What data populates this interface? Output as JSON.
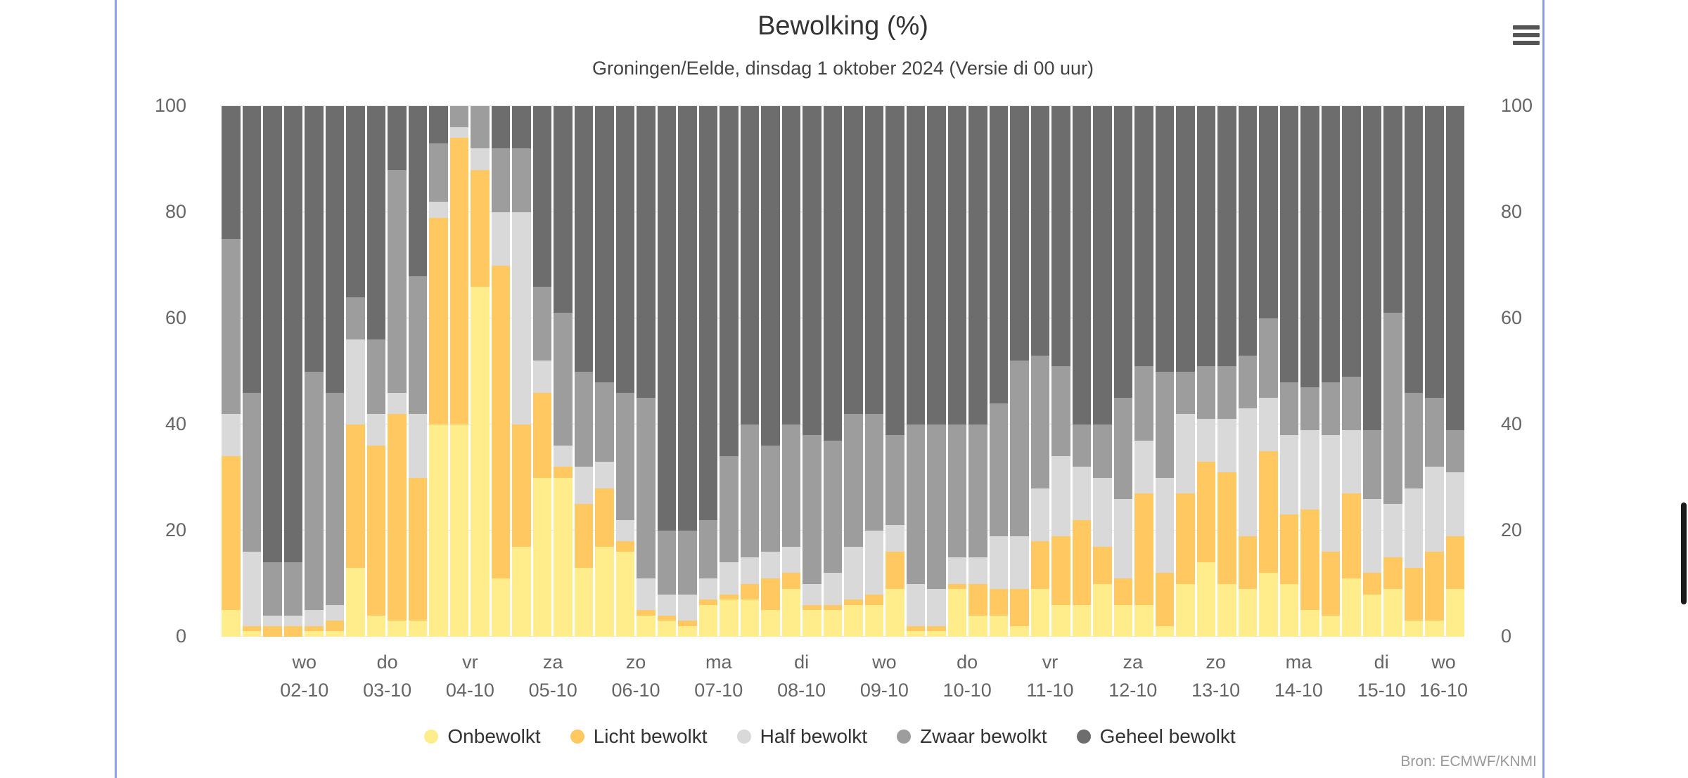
{
  "page": {
    "credits": "Bron: ECMWF/KNMI",
    "accent_border_color": "#8d9df1",
    "scrollbar_color": "#1a1a1a"
  },
  "menu": {
    "icon": "hamburger-menu-icon"
  },
  "chart_data": {
    "type": "bar",
    "stacking": "percent",
    "title": "Bewolking (%)",
    "subtitle": "Groningen/Eelde, dinsdag 1 oktober 2024 (Versie di 00 uur)",
    "xlabel": "",
    "ylabel": "",
    "ylim": [
      0,
      100
    ],
    "yticks": [
      0,
      20,
      40,
      60,
      80,
      100
    ],
    "grid": true,
    "legend_position": "bottom",
    "bar_count": 60,
    "bars_per_day": 4,
    "x_tick_groups": [
      {
        "day": "wo",
        "date": "02-10",
        "start": 2,
        "count": 4
      },
      {
        "day": "do",
        "date": "03-10",
        "start": 6,
        "count": 4
      },
      {
        "day": "vr",
        "date": "04-10",
        "start": 10,
        "count": 4
      },
      {
        "day": "za",
        "date": "05-10",
        "start": 14,
        "count": 4
      },
      {
        "day": "zo",
        "date": "06-10",
        "start": 18,
        "count": 4
      },
      {
        "day": "ma",
        "date": "07-10",
        "start": 22,
        "count": 4
      },
      {
        "day": "di",
        "date": "08-10",
        "start": 26,
        "count": 4
      },
      {
        "day": "wo",
        "date": "09-10",
        "start": 30,
        "count": 4
      },
      {
        "day": "do",
        "date": "10-10",
        "start": 34,
        "count": 4
      },
      {
        "day": "vr",
        "date": "11-10",
        "start": 38,
        "count": 4
      },
      {
        "day": "za",
        "date": "12-10",
        "start": 42,
        "count": 4
      },
      {
        "day": "zo",
        "date": "13-10",
        "start": 46,
        "count": 4
      },
      {
        "day": "ma",
        "date": "14-10",
        "start": 50,
        "count": 4
      },
      {
        "day": "di",
        "date": "15-10",
        "start": 54,
        "count": 4
      },
      {
        "day": "wo",
        "date": "16-10",
        "start": 58,
        "count": 2
      }
    ],
    "series": [
      {
        "name": "Onbewolkt",
        "color": "#ffec8b",
        "values": [
          5,
          1,
          0,
          0,
          1,
          1,
          13,
          4,
          3,
          3,
          40,
          40,
          66,
          11,
          17,
          30,
          30,
          13,
          17,
          16,
          4,
          3,
          2,
          6,
          7,
          7,
          5,
          9,
          5,
          5,
          6,
          6,
          9,
          1,
          1,
          9,
          4,
          4,
          2,
          9,
          6,
          6,
          10,
          6,
          6,
          2,
          10,
          14,
          10,
          9,
          12,
          10,
          5,
          4,
          11,
          8,
          9,
          3,
          3,
          9
        ]
      },
      {
        "name": "Licht bewolkt",
        "color": "#ffc860",
        "values": [
          29,
          1,
          2,
          2,
          1,
          2,
          27,
          32,
          39,
          27,
          39,
          54,
          22,
          59,
          23,
          16,
          2,
          12,
          11,
          2,
          1,
          1,
          1,
          1,
          1,
          3,
          6,
          3,
          1,
          1,
          1,
          2,
          7,
          1,
          1,
          1,
          6,
          5,
          7,
          9,
          13,
          16,
          7,
          5,
          21,
          10,
          17,
          19,
          21,
          10,
          23,
          13,
          19,
          12,
          16,
          4,
          6,
          10,
          13,
          10
        ]
      },
      {
        "name": "Half bewolkt",
        "color": "#d9d9d9",
        "values": [
          8,
          14,
          2,
          2,
          3,
          3,
          16,
          6,
          4,
          12,
          3,
          2,
          4,
          10,
          40,
          6,
          4,
          7,
          5,
          4,
          6,
          4,
          5,
          4,
          6,
          5,
          5,
          5,
          4,
          6,
          10,
          12,
          5,
          8,
          7,
          5,
          5,
          10,
          10,
          10,
          15,
          10,
          13,
          15,
          10,
          18,
          15,
          8,
          10,
          24,
          10,
          15,
          15,
          22,
          12,
          14,
          10,
          15,
          16,
          12
        ]
      },
      {
        "name": "Zwaar bewolkt",
        "color": "#9d9d9d",
        "values": [
          33,
          30,
          10,
          10,
          45,
          40,
          8,
          14,
          42,
          26,
          11,
          4,
          8,
          12,
          12,
          14,
          25,
          18,
          15,
          24,
          34,
          12,
          12,
          11,
          20,
          25,
          20,
          23,
          28,
          25,
          25,
          22,
          17,
          30,
          31,
          25,
          25,
          25,
          33,
          25,
          17,
          8,
          10,
          19,
          14,
          20,
          8,
          10,
          10,
          10,
          15,
          10,
          8,
          10,
          10,
          13,
          36,
          18,
          13,
          8
        ]
      },
      {
        "name": "Geheel bewolkt",
        "color": "#6d6d6d",
        "values": [
          25,
          54,
          86,
          86,
          50,
          54,
          36,
          44,
          12,
          32,
          7,
          0,
          0,
          8,
          8,
          34,
          39,
          50,
          52,
          54,
          55,
          80,
          80,
          78,
          66,
          60,
          64,
          60,
          62,
          63,
          58,
          58,
          62,
          60,
          60,
          60,
          60,
          56,
          48,
          47,
          49,
          60,
          60,
          55,
          49,
          50,
          50,
          49,
          49,
          47,
          40,
          52,
          53,
          52,
          51,
          61,
          39,
          54,
          55,
          61
        ]
      }
    ]
  }
}
